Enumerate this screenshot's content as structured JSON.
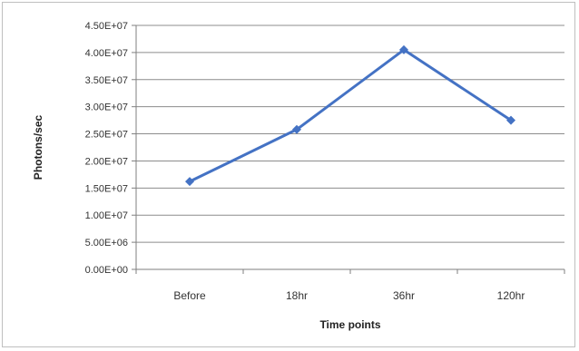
{
  "chart_data": {
    "type": "line",
    "categories": [
      "Before",
      "18hr",
      "36hr",
      "120hr"
    ],
    "series": [
      {
        "values": [
          16200000,
          25800000,
          40500000,
          27500000
        ],
        "color": "#4472c4",
        "marker": "diamond"
      }
    ],
    "title": "",
    "xlabel": "Time points",
    "ylabel": "Photons/sec",
    "ylim": [
      0,
      45000000
    ],
    "yticks": [
      0,
      5000000,
      10000000,
      15000000,
      20000000,
      25000000,
      30000000,
      35000000,
      40000000,
      45000000
    ],
    "ytick_labels": [
      "0.00E+00",
      "5.00E+06",
      "1.00E+07",
      "1.50E+07",
      "2.00E+07",
      "2.50E+07",
      "3.00E+07",
      "3.50E+07",
      "4.00E+07",
      "4.50E+07"
    ],
    "grid": true,
    "legend": "none"
  }
}
